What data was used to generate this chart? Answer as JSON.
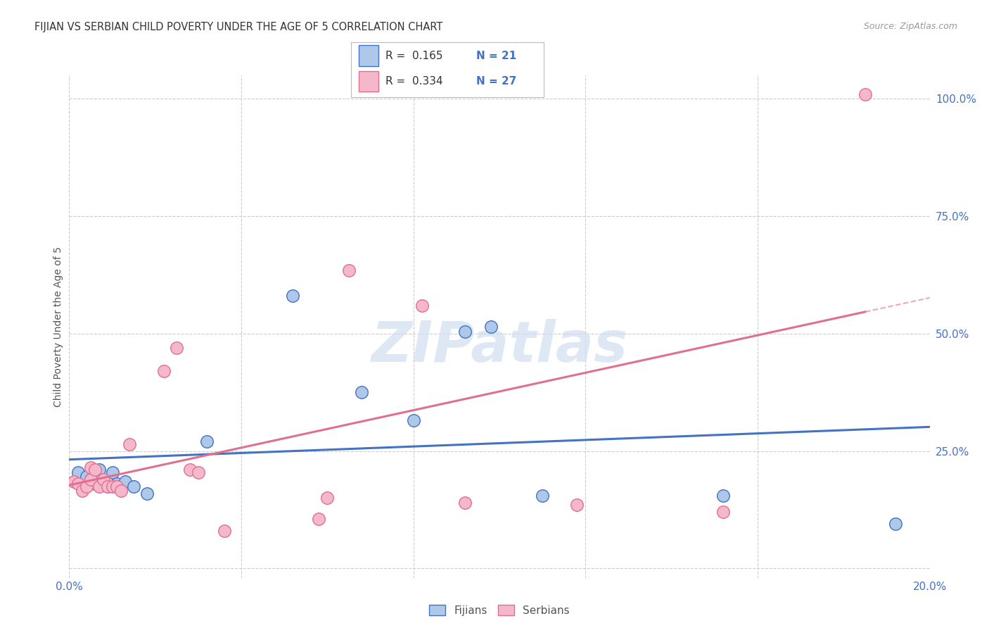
{
  "title": "FIJIAN VS SERBIAN CHILD POVERTY UNDER THE AGE OF 5 CORRELATION CHART",
  "source": "Source: ZipAtlas.com",
  "ylabel": "Child Poverty Under the Age of 5",
  "xlim": [
    0.0,
    0.2
  ],
  "ylim": [
    -0.02,
    1.05
  ],
  "xticks": [
    0.0,
    0.04,
    0.08,
    0.12,
    0.16,
    0.2
  ],
  "xtick_labels": [
    "0.0%",
    "",
    "",
    "",
    "",
    "20.0%"
  ],
  "yticks_right": [
    0.0,
    0.25,
    0.5,
    0.75,
    1.0
  ],
  "ytick_labels_right": [
    "",
    "25.0%",
    "50.0%",
    "75.0%",
    "100.0%"
  ],
  "fijian_color": "#adc8e8",
  "serbian_color": "#f5b8cb",
  "fijian_line_color": "#4472c4",
  "serbian_line_color": "#e07090",
  "legend_R_fijian": "R =  0.165",
  "legend_N_fijian": "N = 21",
  "legend_R_serbian": "R =  0.334",
  "legend_N_serbian": "N = 27",
  "fijian_x": [
    0.002,
    0.004,
    0.005,
    0.006,
    0.007,
    0.008,
    0.009,
    0.01,
    0.011,
    0.013,
    0.015,
    0.018,
    0.032,
    0.052,
    0.068,
    0.08,
    0.092,
    0.098,
    0.11,
    0.152,
    0.192
  ],
  "fijian_y": [
    0.205,
    0.195,
    0.19,
    0.18,
    0.21,
    0.185,
    0.175,
    0.205,
    0.18,
    0.185,
    0.175,
    0.16,
    0.27,
    0.58,
    0.375,
    0.315,
    0.505,
    0.515,
    0.155,
    0.155,
    0.095
  ],
  "serbian_x": [
    0.001,
    0.002,
    0.003,
    0.004,
    0.005,
    0.005,
    0.006,
    0.007,
    0.008,
    0.009,
    0.01,
    0.011,
    0.012,
    0.014,
    0.022,
    0.025,
    0.028,
    0.03,
    0.036,
    0.058,
    0.06,
    0.065,
    0.082,
    0.092,
    0.118,
    0.152,
    0.185
  ],
  "serbian_y": [
    0.185,
    0.18,
    0.165,
    0.175,
    0.19,
    0.215,
    0.21,
    0.175,
    0.19,
    0.175,
    0.175,
    0.175,
    0.165,
    0.265,
    0.42,
    0.47,
    0.21,
    0.205,
    0.08,
    0.105,
    0.15,
    0.635,
    0.56,
    0.14,
    0.135,
    0.12,
    1.01
  ],
  "background_color": "#ffffff",
  "grid_color": "#cccccc",
  "title_color": "#333333",
  "axis_label_color": "#555555",
  "tick_label_color": "#4472c4",
  "watermark": "ZIPatlas",
  "watermark_color": "#d0dff0"
}
